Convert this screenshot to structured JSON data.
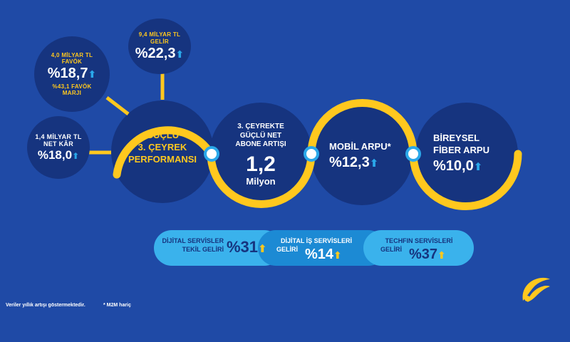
{
  "favok": {
    "line1": "4,0 MİLYAR TL",
    "line2": "FAVÖK",
    "value": "%18,7",
    "margin_line1": "%43,1 FAVÖK",
    "margin_line2": "MARJI"
  },
  "gelir": {
    "line1": "9,4 MİLYAR TL",
    "line2": "GELİR",
    "value": "%22,3"
  },
  "netkar": {
    "line1": "1,4 MİLYAR TL",
    "line2": "NET KÂR",
    "value": "%18,0"
  },
  "main_circle": {
    "line1": "GÜÇLÜ",
    "line2": "3. ÇEYREK",
    "line3": "PERFORMANSI"
  },
  "subscriber": {
    "line1": "3. ÇEYREKTE",
    "line2": "GÜÇLÜ NET",
    "line3": "ABONE ARTIŞI",
    "value": "1,2",
    "unit": "Milyon"
  },
  "mobile": {
    "label": "MOBİL ARPU*",
    "value": "%12,3"
  },
  "fiber": {
    "line1": "BİREYSEL",
    "line2": "FİBER ARPU",
    "value": "%10,0"
  },
  "pills": [
    {
      "line1": "DİJİTAL SERVİSLER",
      "line2": "TEKİL GELİRİ",
      "value": "%31"
    },
    {
      "line1": "DİJİTAL İŞ SERVİSLERİ",
      "line2": "GELİRİ",
      "value": "%14"
    },
    {
      "line1": "TECHFIN SERVİSLERİ",
      "line2": "GELİRİ",
      "value": "%37"
    }
  ],
  "arrow_glyph": "⬆",
  "footnote": {
    "left": "Veriler yıllık artışı göstermektedir.",
    "right": "* M2M hariç"
  },
  "colors": {
    "background": "#1f4aa6",
    "dark": "#16347f",
    "yellow": "#ffc81e",
    "cyan": "#2aa8ea"
  }
}
